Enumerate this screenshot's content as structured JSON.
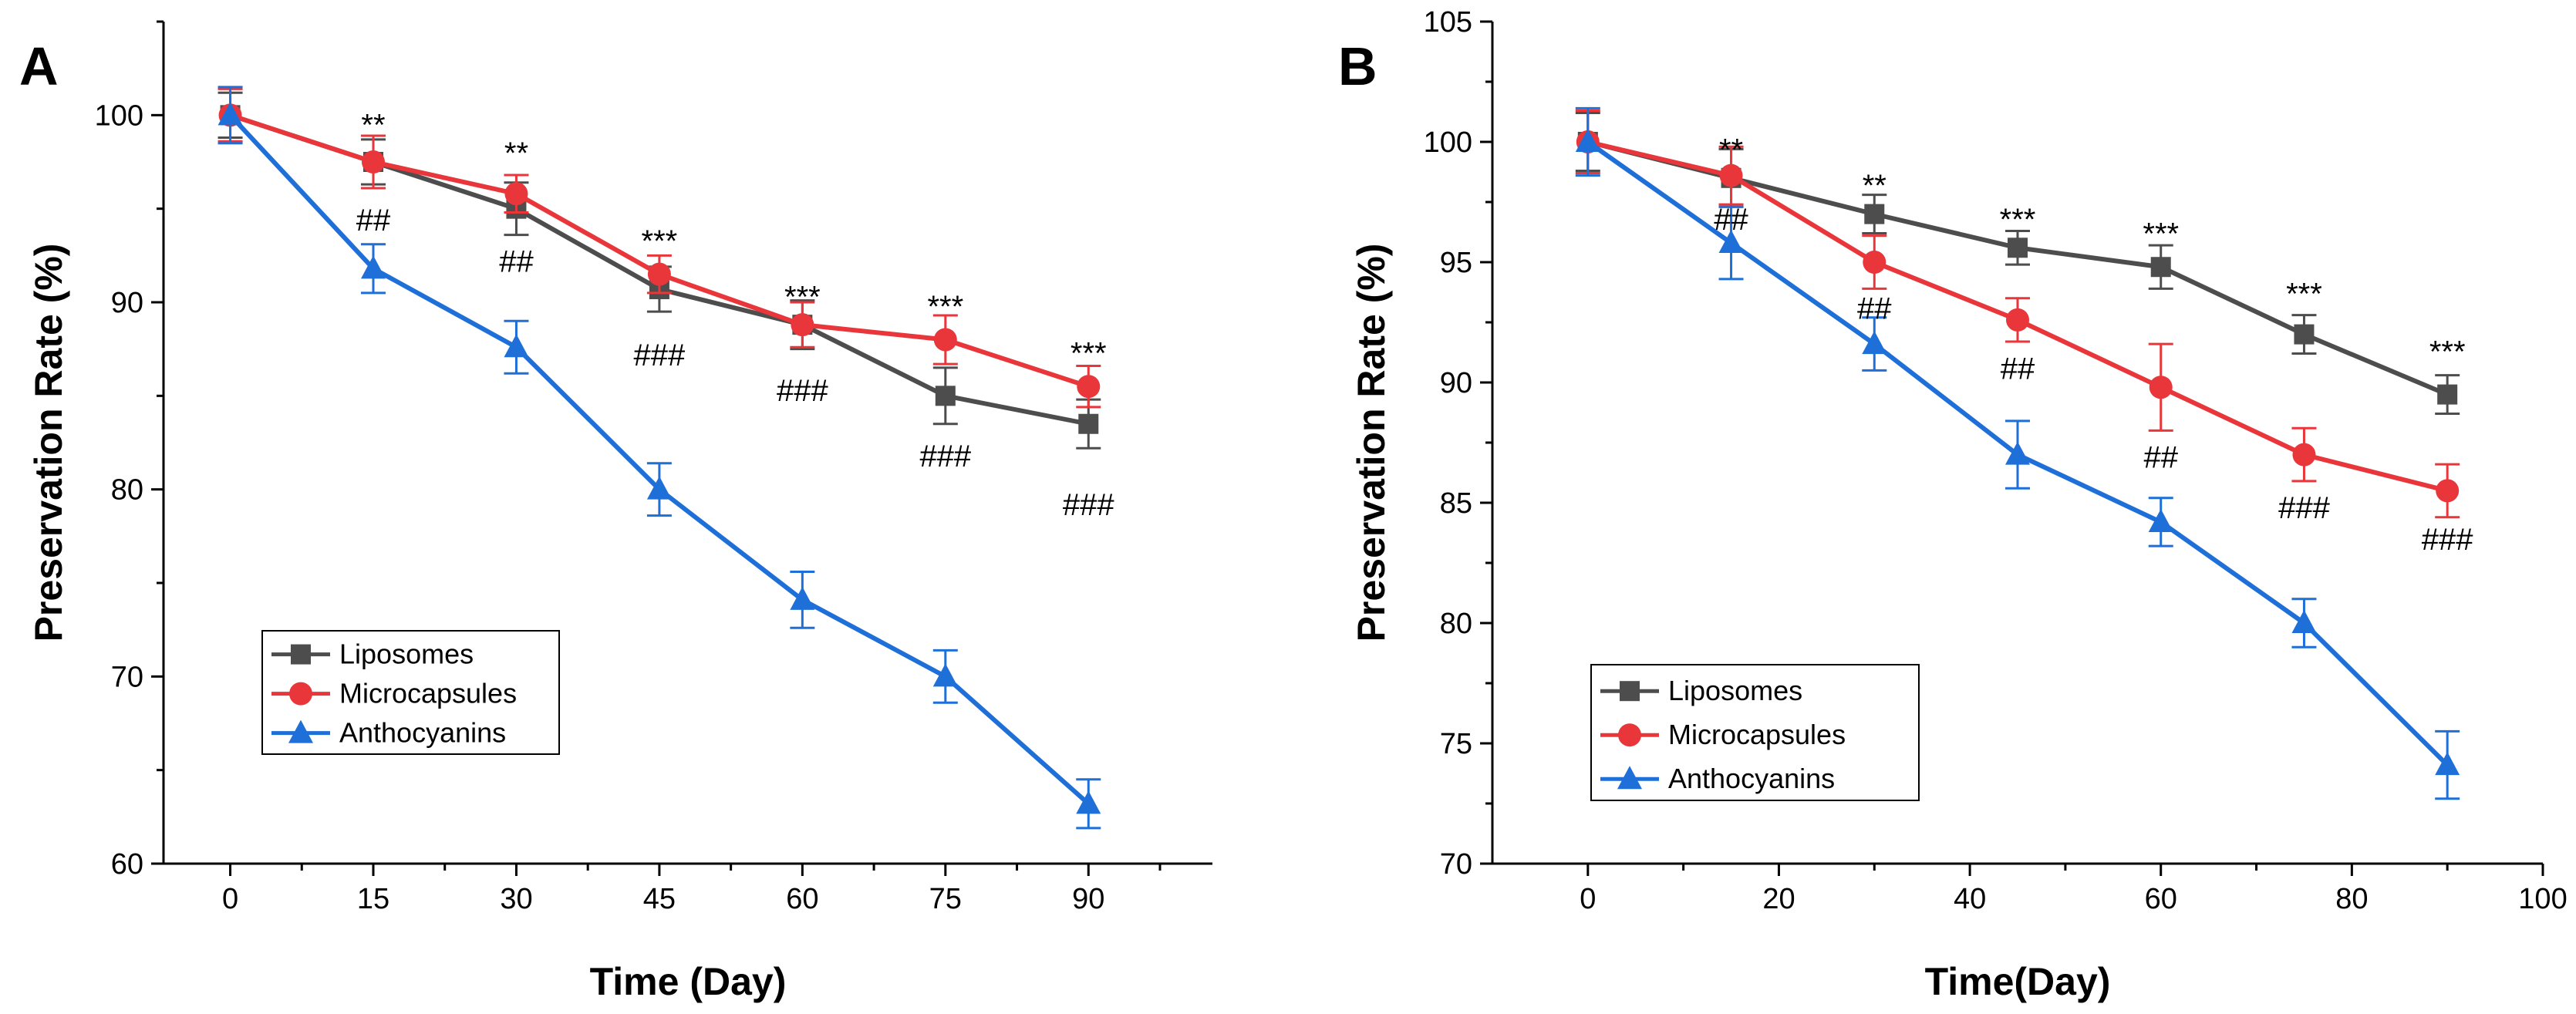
{
  "chart_data": [
    {
      "panel": "A",
      "type": "line",
      "xlabel": "Time (Day)",
      "ylabel": "Preservation Rate (%)",
      "xlim": [
        -7,
        103
      ],
      "ylim": [
        60,
        105
      ],
      "xticks": [
        "0",
        "15",
        "30",
        "45",
        "60",
        "75",
        "90"
      ],
      "yticks": [
        "60",
        "70",
        "80",
        "90",
        "100"
      ],
      "x": [
        0,
        15,
        30,
        45,
        60,
        75,
        90
      ],
      "legend_position": "lower-left",
      "series": [
        {
          "name": "Liposomes",
          "color": "#4d4d4d",
          "marker": "square",
          "values": [
            100,
            97.5,
            95,
            90.7,
            88.8,
            85,
            83.5
          ],
          "errors": [
            1.2,
            1.2,
            1.4,
            1.2,
            1.3,
            1.5,
            1.3
          ]
        },
        {
          "name": "Microcapsules",
          "color": "#e8363a",
          "marker": "circle",
          "values": [
            100,
            97.5,
            95.8,
            91.5,
            88.8,
            88,
            85.5
          ],
          "errors": [
            1.4,
            1.4,
            1.0,
            1.0,
            1.2,
            1.3,
            1.1
          ]
        },
        {
          "name": "Anthocyanins",
          "color": "#1f6fd8",
          "marker": "triangle",
          "values": [
            100,
            91.8,
            87.6,
            80,
            74.1,
            70,
            63.2
          ],
          "errors": [
            1.5,
            1.3,
            1.4,
            1.4,
            1.5,
            1.4,
            1.3
          ]
        }
      ],
      "annotations_top": [
        "**",
        "**",
        "***",
        "***",
        "***",
        "***"
      ],
      "annotations_top_y": [
        99.5,
        98,
        93.3,
        90.3,
        89.8,
        87.3
      ],
      "annotations_bottom": [
        "##",
        "##",
        "###",
        "###",
        "###",
        "###"
      ],
      "annotations_bottom_y": [
        94.4,
        92.2,
        87.2,
        85.3,
        81.8,
        79.2
      ],
      "annotations_x": [
        15,
        30,
        45,
        60,
        75,
        90
      ]
    },
    {
      "panel": "B",
      "type": "line",
      "xlabel": "Time(Day)",
      "ylabel": "Preservation Rate (%)",
      "xlim": [
        -10,
        100
      ],
      "ylim": [
        70,
        105
      ],
      "xticks": [
        "0",
        "20",
        "40",
        "60",
        "80",
        "100"
      ],
      "yticks": [
        "70",
        "75",
        "80",
        "85",
        "90",
        "95",
        "100",
        "105"
      ],
      "x": [
        0,
        15,
        30,
        45,
        60,
        75,
        90
      ],
      "legend_position": "lower-left",
      "series": [
        {
          "name": "Liposomes",
          "color": "#4d4d4d",
          "marker": "square",
          "values": [
            100,
            98.5,
            97,
            95.6,
            94.8,
            92,
            89.5
          ],
          "errors": [
            1.2,
            1.2,
            0.8,
            0.7,
            0.9,
            0.8,
            0.8
          ]
        },
        {
          "name": "Microcapsules",
          "color": "#e8363a",
          "marker": "circle",
          "values": [
            100,
            98.6,
            95,
            92.6,
            89.8,
            87,
            85.5
          ],
          "errors": [
            1.3,
            1.2,
            1.1,
            0.9,
            1.8,
            1.1,
            1.1
          ]
        },
        {
          "name": "Anthocyanins",
          "color": "#1f6fd8",
          "marker": "triangle",
          "values": [
            100,
            95.8,
            91.6,
            87,
            84.2,
            80,
            74.1
          ],
          "errors": [
            1.4,
            1.5,
            1.1,
            1.4,
            1.0,
            1.0,
            1.4
          ]
        }
      ],
      "annotations_top": [
        "**",
        "**",
        "***",
        "***",
        "***",
        "***"
      ],
      "annotations_top_y": [
        99.7,
        98.2,
        96.8,
        96.2,
        93.7,
        91.3
      ],
      "annotations_bottom": [
        "##",
        "##",
        "##",
        "##",
        "###",
        "###"
      ],
      "annotations_bottom_y": [
        96.8,
        93.1,
        90.6,
        86.9,
        84.8,
        83.5
      ],
      "annotations_x": [
        15,
        30,
        45,
        60,
        75,
        90
      ]
    }
  ]
}
